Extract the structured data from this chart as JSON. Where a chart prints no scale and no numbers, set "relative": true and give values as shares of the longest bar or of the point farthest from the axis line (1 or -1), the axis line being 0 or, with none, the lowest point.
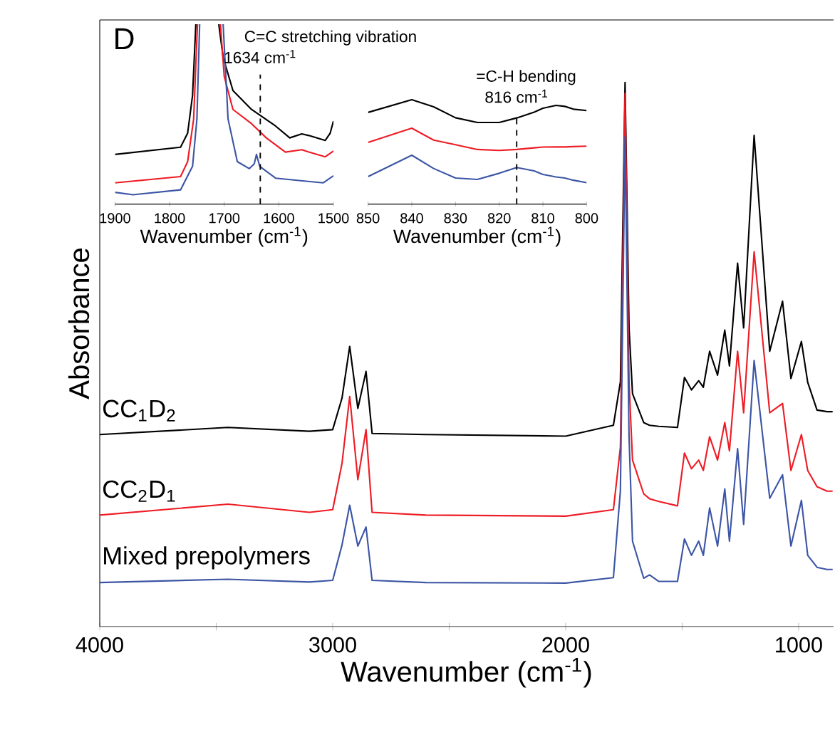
{
  "chart_data": [
    {
      "type": "line",
      "relative": true,
      "xlabel": "Wavenumber (cm$^{-1}$)",
      "ylabel": "Absorbance",
      "xlim": [
        4000,
        850
      ],
      "xticks": [
        4000,
        {
          "value": 3500,
          "label": null
        },
        3000,
        {
          "value": 2500,
          "label": null
        },
        2000,
        {
          "value": 1500,
          "label": null
        },
        1000
      ],
      "annotations": [
        "D"
      ],
      "x": [
        4000,
        3450,
        3100,
        3000,
        2960,
        2927,
        2892,
        2857,
        2831,
        2600,
        2000,
        1795,
        1765,
        1745,
        1728,
        1713,
        1665,
        1640,
        1600,
        1520,
        1490,
        1460,
        1429,
        1409,
        1382,
        1348,
        1317,
        1297,
        1262,
        1236,
        1191,
        1124,
        1069,
        1033,
        988,
        961,
        921,
        878,
        854
      ],
      "series": [
        {
          "name": "CC$_{1}$D$_{2}$",
          "color": "#000000",
          "values": [
            0.353,
            0.366,
            0.359,
            0.362,
            0.42,
            0.515,
            0.401,
            0.469,
            0.355,
            0.353,
            0.35,
            0.37,
            0.45,
            1.0,
            0.55,
            0.428,
            0.375,
            0.37,
            0.368,
            0.366,
            0.458,
            0.435,
            0.452,
            0.44,
            0.506,
            0.462,
            0.545,
            0.479,
            0.668,
            0.549,
            0.903,
            0.506,
            0.598,
            0.456,
            0.524,
            0.449,
            0.398,
            0.395,
            0.395
          ]
        },
        {
          "name": "CC$_{2}$D$_{1}$",
          "color": "#ee1c25",
          "values": [
            0.205,
            0.225,
            0.21,
            0.215,
            0.3,
            0.423,
            0.27,
            0.362,
            0.21,
            0.205,
            0.203,
            0.215,
            0.33,
            0.98,
            0.45,
            0.306,
            0.244,
            0.235,
            0.23,
            0.222,
            0.319,
            0.29,
            0.306,
            0.287,
            0.349,
            0.306,
            0.375,
            0.323,
            0.506,
            0.393,
            0.689,
            0.393,
            0.41,
            0.287,
            0.353,
            0.287,
            0.257,
            0.249,
            0.249
          ]
        },
        {
          "name": "Mixed prepolymers",
          "color": "#3c55a5",
          "values": [
            0.081,
            0.087,
            0.082,
            0.085,
            0.15,
            0.223,
            0.148,
            0.183,
            0.085,
            0.081,
            0.08,
            0.09,
            0.25,
            0.9,
            0.35,
            0.157,
            0.089,
            0.095,
            0.083,
            0.083,
            0.161,
            0.131,
            0.157,
            0.131,
            0.218,
            0.148,
            0.253,
            0.157,
            0.327,
            0.188,
            0.489,
            0.236,
            0.279,
            0.148,
            0.232,
            0.131,
            0.109,
            0.105,
            0.105
          ]
        }
      ]
    },
    {
      "type": "line",
      "relative": true,
      "xlabel": "Wavenumber (cm$^{-1}$)",
      "xlim": [
        1900,
        1500
      ],
      "xticks": [
        1900,
        1800,
        1700,
        1600,
        1500
      ],
      "annotations": [
        "C=C stretching vibration"
      ],
      "ref_lines": [
        {
          "axis": "x",
          "value": 1634,
          "label": "1634 cm$^{-1}$",
          "line_style": "dashed"
        }
      ],
      "series": [
        {
          "color": "#000000",
          "x": [
            1900,
            1780,
            1767,
            1758,
            1752,
            1730,
            1710,
            1702,
            1684,
            1650,
            1606,
            1580,
            1558,
            1545,
            1515,
            1506,
            1500
          ],
          "values": [
            0.276,
            0.316,
            0.394,
            0.605,
            1.0,
            null,
            1.0,
            0.816,
            0.631,
            0.526,
            0.434,
            0.368,
            0.39,
            0.381,
            0.354,
            0.394,
            0.461
          ]
        },
        {
          "color": "#ee1c25",
          "x": [
            1900,
            1780,
            1767,
            1756,
            1749,
            1730,
            1707,
            1700,
            1684,
            1650,
            1623,
            1588,
            1558,
            1545,
            1515,
            1500
          ],
          "values": [
            0.118,
            0.153,
            0.236,
            0.473,
            1.0,
            null,
            1.0,
            0.71,
            0.526,
            0.447,
            0.368,
            0.289,
            0.302,
            0.289,
            0.263,
            0.295
          ]
        },
        {
          "color": "#3c55a5",
          "x": [
            1900,
            1867,
            1780,
            1758,
            1750,
            1745,
            1725,
            1702,
            1693,
            1676,
            1654,
            1645,
            1641,
            1635,
            1606,
            1563,
            1519,
            1500
          ],
          "values": [
            0.065,
            0.052,
            0.079,
            0.21,
            0.473,
            1.0,
            null,
            1.0,
            0.473,
            0.236,
            0.197,
            0.224,
            0.276,
            0.21,
            0.144,
            0.131,
            0.118,
            0.157
          ]
        }
      ]
    },
    {
      "type": "line",
      "relative": true,
      "xlabel": "Wavenumber (cm$^{-1}$)",
      "xlim": [
        850,
        800
      ],
      "xticks": [
        850,
        840,
        830,
        820,
        810,
        800
      ],
      "annotations": [
        "=C-H bending"
      ],
      "ref_lines": [
        {
          "axis": "x",
          "value": 816,
          "label": "816 cm$^{-1}$",
          "line_style": "dashed"
        }
      ],
      "x": [
        850,
        840,
        835,
        830,
        825,
        820,
        816,
        812,
        810,
        807,
        805,
        803,
        800
      ],
      "series": [
        {
          "color": "#000000",
          "values": [
            0.878,
            1.0,
            0.932,
            0.827,
            0.782,
            0.782,
            0.825,
            0.881,
            0.918,
            0.945,
            0.936,
            0.909,
            0.896
          ]
        },
        {
          "color": "#ee1c25",
          "values": [
            0.591,
            0.727,
            0.613,
            0.568,
            0.523,
            0.514,
            0.523,
            0.539,
            0.546,
            0.547,
            0.547,
            0.551,
            0.555
          ]
        },
        {
          "color": "#3c55a5",
          "values": [
            0.263,
            0.468,
            0.341,
            0.25,
            0.236,
            0.295,
            0.35,
            0.318,
            0.284,
            0.26,
            0.25,
            0.228,
            0.205
          ]
        }
      ]
    }
  ]
}
